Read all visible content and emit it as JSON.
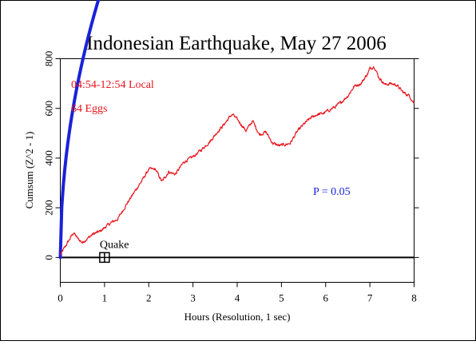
{
  "chart_data": {
    "type": "line",
    "title": "Indonesian Earthquake, May 27 2006",
    "xlabel": "Hours (Resolution, 1 sec)",
    "ylabel": "Cumsum (Z^2 - 1)",
    "xlim": [
      0,
      8
    ],
    "ylim": [
      -100,
      800
    ],
    "x_ticks": [
      0,
      1,
      2,
      3,
      4,
      5,
      6,
      7,
      8
    ],
    "y_ticks": [
      0,
      200,
      400,
      600,
      800
    ],
    "annotations": {
      "time_window": "04:54-12:54 Local",
      "eggs": "64 Eggs",
      "p_label": "P = 0.05",
      "event_label": "Quake",
      "event_x": 1,
      "event_y": 0
    },
    "series": [
      {
        "color": "#e8131b",
        "x": [
          0,
          0.15,
          0.3,
          0.4,
          0.5,
          0.6,
          0.75,
          0.9,
          1.0,
          1.15,
          1.3,
          1.5,
          1.7,
          1.85,
          2.0,
          2.15,
          2.3,
          2.45,
          2.6,
          2.8,
          3.0,
          3.2,
          3.4,
          3.55,
          3.7,
          3.85,
          3.9,
          4.05,
          4.2,
          4.35,
          4.5,
          4.65,
          4.8,
          4.95,
          5.1,
          5.2,
          5.35,
          5.5,
          5.65,
          5.8,
          5.95,
          6.1,
          6.25,
          6.35,
          6.5,
          6.65,
          6.8,
          6.95,
          7.0,
          7.1,
          7.2,
          7.35,
          7.45,
          7.6,
          7.75,
          7.9,
          8.0
        ],
        "y": [
          10,
          55,
          100,
          75,
          60,
          75,
          95,
          105,
          120,
          140,
          155,
          215,
          270,
          310,
          355,
          355,
          305,
          345,
          335,
          385,
          405,
          435,
          470,
          505,
          535,
          570,
          575,
          545,
          510,
          550,
          495,
          505,
          460,
          450,
          455,
          460,
          505,
          535,
          560,
          575,
          580,
          595,
          610,
          625,
          650,
          690,
          700,
          740,
          760,
          770,
          725,
          695,
          700,
          695,
          665,
          650,
          620
        ]
      },
      {
        "name": "P = 0.05",
        "color": "#1a22d8",
        "kind": "probability-envelope"
      }
    ]
  }
}
